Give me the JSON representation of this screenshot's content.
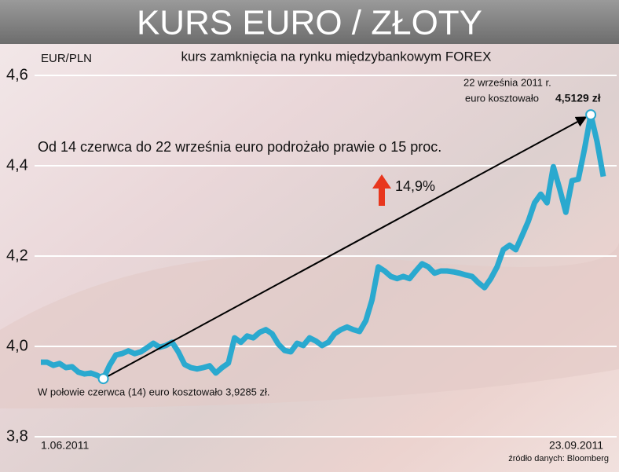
{
  "chart_data": {
    "type": "line",
    "title": "KURS EURO / ZŁOTY",
    "subtitle": "kurs zamknięcia na rynku międzybankowym FOREX",
    "y_label": "EUR/PLN",
    "annotations": [
      "Od 14 czerwca do 22 września euro podrożało prawie o 15 proc.",
      "14,9%",
      "22 września 2011 r.",
      "euro kosztowało",
      "4,5129 zł",
      "W połowie czerwca (14) euro kosztowało 3,9285 zł."
    ],
    "source": "źródło danych: Bloomberg",
    "categories": [
      "1.06.2011",
      null,
      null,
      null,
      null,
      null,
      null,
      null,
      null,
      null,
      null,
      null,
      null,
      null,
      null,
      null,
      null,
      null,
      null,
      null,
      null,
      null,
      null,
      null,
      null,
      null,
      null,
      null,
      null,
      null,
      null,
      null,
      null,
      null,
      null,
      null,
      null,
      null,
      null,
      null,
      null,
      null,
      null,
      null,
      null,
      null,
      null,
      null,
      null,
      null,
      null,
      null,
      null,
      null,
      null,
      null,
      null,
      null,
      null,
      null,
      null,
      null,
      null,
      null,
      null,
      null,
      null,
      null,
      null,
      null,
      null,
      null,
      null,
      null,
      null,
      null,
      null,
      null,
      null,
      null,
      null,
      null,
      null,
      null,
      null,
      null,
      null,
      null,
      null,
      null,
      "23.09.2011"
    ],
    "values": [
      3.965,
      3.965,
      3.958,
      3.962,
      3.953,
      3.955,
      3.943,
      3.939,
      3.941,
      3.936,
      3.9285,
      3.958,
      3.981,
      3.984,
      3.99,
      3.984,
      3.988,
      3.997,
      4.007,
      3.998,
      4.002,
      4.009,
      3.988,
      3.96,
      3.953,
      3.95,
      3.953,
      3.957,
      3.941,
      3.953,
      3.963,
      4.019,
      4.009,
      4.023,
      4.019,
      4.031,
      4.037,
      4.028,
      4.005,
      3.991,
      3.988,
      4.007,
      4.002,
      4.019,
      4.012,
      4.002,
      4.009,
      4.028,
      4.037,
      4.043,
      4.037,
      4.033,
      4.057,
      4.103,
      4.176,
      4.167,
      4.155,
      4.15,
      4.155,
      4.15,
      4.167,
      4.183,
      4.176,
      4.162,
      4.167,
      4.167,
      4.165,
      4.162,
      4.158,
      4.155,
      4.141,
      4.13,
      4.15,
      4.176,
      4.214,
      4.224,
      4.214,
      4.245,
      4.277,
      4.318,
      4.337,
      4.318,
      4.398,
      4.35,
      4.297,
      4.367,
      4.37,
      4.437,
      4.5129,
      4.454,
      4.376
    ],
    "color": "#2aa9cf",
    "ylim": [
      3.8,
      4.6
    ],
    "yticks": [
      {
        "value": 3.8,
        "label": "3,8"
      },
      {
        "value": 4.0,
        "label": "4,0"
      },
      {
        "value": 4.2,
        "label": "4,2"
      },
      {
        "value": 4.4,
        "label": "4,4"
      },
      {
        "value": 4.6,
        "label": "4,6"
      }
    ],
    "grid": true
  }
}
